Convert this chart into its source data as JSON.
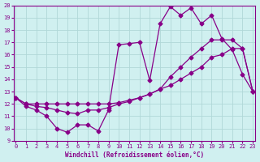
{
  "xlabel": "Windchill (Refroidissement éolien,°C)",
  "bg_color": "#d0f0f0",
  "grid_color": "#b0d8d8",
  "line_color": "#880088",
  "xlim": [
    0,
    23
  ],
  "ylim": [
    9,
    20
  ],
  "xticks": [
    0,
    1,
    2,
    3,
    4,
    5,
    6,
    7,
    8,
    9,
    10,
    11,
    12,
    13,
    14,
    15,
    16,
    17,
    18,
    19,
    20,
    21,
    22,
    23
  ],
  "yticks": [
    9,
    10,
    11,
    12,
    13,
    14,
    15,
    16,
    17,
    18,
    19,
    20
  ],
  "line1_x": [
    0,
    1,
    2,
    3,
    4,
    5,
    6,
    7,
    8,
    9,
    10,
    11,
    12,
    13,
    14,
    15,
    16,
    17,
    18,
    19,
    20,
    21,
    22,
    23
  ],
  "line1_y": [
    12.5,
    11.8,
    11.5,
    11.0,
    10.0,
    9.7,
    10.3,
    10.3,
    9.8,
    11.5,
    16.8,
    16.9,
    17.0,
    13.9,
    18.5,
    19.9,
    19.2,
    19.8,
    18.5,
    19.2,
    17.3,
    16.4,
    14.4,
    13.0
  ],
  "line2_x": [
    0,
    1,
    2,
    3,
    4,
    5,
    6,
    7,
    8,
    9,
    10,
    11,
    12,
    13,
    14,
    15,
    16,
    17,
    18,
    19,
    20,
    21,
    22,
    23
  ],
  "line2_y": [
    12.5,
    12.0,
    11.8,
    11.7,
    11.5,
    11.3,
    11.2,
    11.5,
    11.5,
    11.7,
    12.0,
    12.2,
    12.5,
    12.8,
    13.2,
    14.2,
    15.0,
    15.8,
    16.5,
    17.2,
    17.2,
    17.2,
    16.5,
    13.0
  ],
  "line3_x": [
    0,
    1,
    2,
    3,
    4,
    5,
    6,
    7,
    8,
    9,
    10,
    11,
    12,
    13,
    14,
    15,
    16,
    17,
    18,
    19,
    20,
    21,
    22,
    23
  ],
  "line3_y": [
    12.5,
    12.0,
    12.0,
    12.0,
    12.0,
    12.0,
    12.0,
    12.0,
    12.0,
    12.0,
    12.1,
    12.3,
    12.5,
    12.8,
    13.2,
    13.5,
    14.0,
    14.5,
    15.0,
    15.8,
    16.0,
    16.5,
    16.5,
    13.0
  ]
}
